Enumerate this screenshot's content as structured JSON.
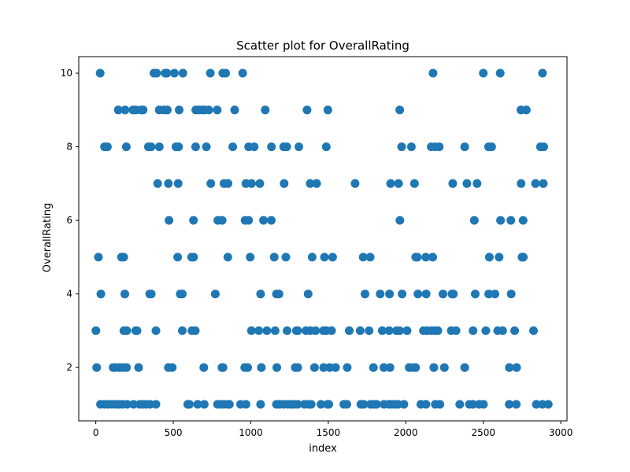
{
  "chart_data": {
    "type": "scatter",
    "title": "Scatter plot for OverallRating",
    "xlabel": "index",
    "ylabel": "OverallRating",
    "xlim": [
      -110,
      3040
    ],
    "ylim": [
      0.55,
      10.45
    ],
    "xticks": [
      0,
      500,
      1000,
      1500,
      2000,
      2500,
      3000
    ],
    "yticks": [
      2,
      4,
      6,
      8,
      10
    ],
    "grid": false,
    "legend": "none",
    "marker_color": "#1f77b4",
    "series": [
      {
        "points": [
          [
            28,
            10
          ],
          [
            375,
            10
          ],
          [
            393,
            10
          ],
          [
            448,
            10
          ],
          [
            459,
            10
          ],
          [
            507,
            10
          ],
          [
            562,
            10
          ],
          [
            739,
            10
          ],
          [
            819,
            10
          ],
          [
            838,
            10
          ],
          [
            948,
            10
          ],
          [
            2176,
            10
          ],
          [
            2500,
            10
          ],
          [
            2609,
            10
          ],
          [
            2882,
            10
          ],
          [
            145,
            9
          ],
          [
            189,
            9
          ],
          [
            240,
            9
          ],
          [
            258,
            9
          ],
          [
            292,
            9
          ],
          [
            305,
            9
          ],
          [
            409,
            9
          ],
          [
            439,
            9
          ],
          [
            461,
            9
          ],
          [
            538,
            9
          ],
          [
            645,
            9
          ],
          [
            667,
            9
          ],
          [
            685,
            9
          ],
          [
            701,
            9
          ],
          [
            729,
            9
          ],
          [
            783,
            9
          ],
          [
            896,
            9
          ],
          [
            1093,
            9
          ],
          [
            1363,
            9
          ],
          [
            1497,
            9
          ],
          [
            1961,
            9
          ],
          [
            2743,
            9
          ],
          [
            2778,
            9
          ],
          [
            56,
            8
          ],
          [
            75,
            8
          ],
          [
            197,
            8
          ],
          [
            339,
            8
          ],
          [
            357,
            8
          ],
          [
            410,
            8
          ],
          [
            517,
            8
          ],
          [
            534,
            8
          ],
          [
            644,
            8
          ],
          [
            713,
            8
          ],
          [
            884,
            8
          ],
          [
            986,
            8
          ],
          [
            1022,
            8
          ],
          [
            1133,
            8
          ],
          [
            1212,
            8
          ],
          [
            1232,
            8
          ],
          [
            1310,
            8
          ],
          [
            1487,
            8
          ],
          [
            1973,
            8
          ],
          [
            2036,
            8
          ],
          [
            2164,
            8
          ],
          [
            2191,
            8
          ],
          [
            2216,
            8
          ],
          [
            2380,
            8
          ],
          [
            2534,
            8
          ],
          [
            2554,
            8
          ],
          [
            2869,
            8
          ],
          [
            2890,
            8
          ],
          [
            399,
            7
          ],
          [
            468,
            7
          ],
          [
            531,
            7
          ],
          [
            742,
            7
          ],
          [
            827,
            7
          ],
          [
            853,
            7
          ],
          [
            968,
            7
          ],
          [
            1004,
            7
          ],
          [
            1058,
            7
          ],
          [
            1215,
            7
          ],
          [
            1383,
            7
          ],
          [
            1425,
            7
          ],
          [
            1673,
            7
          ],
          [
            1902,
            7
          ],
          [
            1953,
            7
          ],
          [
            2056,
            7
          ],
          [
            2303,
            7
          ],
          [
            2394,
            7
          ],
          [
            2460,
            7
          ],
          [
            2744,
            7
          ],
          [
            2837,
            7
          ],
          [
            2887,
            7
          ],
          [
            472,
            6
          ],
          [
            630,
            6
          ],
          [
            787,
            6
          ],
          [
            815,
            6
          ],
          [
            963,
            6
          ],
          [
            986,
            6
          ],
          [
            1082,
            6
          ],
          [
            1132,
            6
          ],
          [
            1962,
            6
          ],
          [
            2442,
            6
          ],
          [
            2611,
            6
          ],
          [
            2678,
            6
          ],
          [
            2757,
            6
          ],
          [
            17,
            5
          ],
          [
            166,
            5
          ],
          [
            180,
            5
          ],
          [
            528,
            5
          ],
          [
            618,
            5
          ],
          [
            631,
            5
          ],
          [
            852,
            5
          ],
          [
            996,
            5
          ],
          [
            1151,
            5
          ],
          [
            1226,
            5
          ],
          [
            1396,
            5
          ],
          [
            1475,
            5
          ],
          [
            1528,
            5
          ],
          [
            1725,
            5
          ],
          [
            1770,
            5
          ],
          [
            2064,
            5
          ],
          [
            2074,
            5
          ],
          [
            2129,
            5
          ],
          [
            2174,
            5
          ],
          [
            2539,
            5
          ],
          [
            2602,
            5
          ],
          [
            2750,
            5
          ],
          [
            2758,
            5
          ],
          [
            33,
            4
          ],
          [
            187,
            4
          ],
          [
            348,
            4
          ],
          [
            358,
            4
          ],
          [
            545,
            4
          ],
          [
            558,
            4
          ],
          [
            771,
            4
          ],
          [
            1063,
            4
          ],
          [
            1166,
            4
          ],
          [
            1182,
            4
          ],
          [
            1370,
            4
          ],
          [
            1737,
            4
          ],
          [
            1835,
            4
          ],
          [
            1895,
            4
          ],
          [
            1976,
            4
          ],
          [
            2078,
            4
          ],
          [
            2131,
            4
          ],
          [
            2240,
            4
          ],
          [
            2298,
            4
          ],
          [
            2307,
            4
          ],
          [
            2448,
            4
          ],
          [
            2535,
            4
          ],
          [
            2575,
            4
          ],
          [
            2680,
            4
          ],
          [
            1,
            3
          ],
          [
            181,
            3
          ],
          [
            200,
            3
          ],
          [
            258,
            3
          ],
          [
            266,
            3
          ],
          [
            388,
            3
          ],
          [
            558,
            3
          ],
          [
            620,
            3
          ],
          [
            642,
            3
          ],
          [
            1004,
            3
          ],
          [
            1052,
            3
          ],
          [
            1104,
            3
          ],
          [
            1157,
            3
          ],
          [
            1234,
            3
          ],
          [
            1294,
            3
          ],
          [
            1303,
            3
          ],
          [
            1356,
            3
          ],
          [
            1384,
            3
          ],
          [
            1418,
            3
          ],
          [
            1468,
            3
          ],
          [
            1488,
            3
          ],
          [
            1521,
            3
          ],
          [
            1635,
            3
          ],
          [
            1706,
            3
          ],
          [
            1763,
            3
          ],
          [
            1848,
            3
          ],
          [
            1893,
            3
          ],
          [
            1940,
            3
          ],
          [
            1961,
            3
          ],
          [
            2008,
            3
          ],
          [
            2114,
            3
          ],
          [
            2139,
            3
          ],
          [
            2165,
            3
          ],
          [
            2186,
            3
          ],
          [
            2207,
            3
          ],
          [
            2293,
            3
          ],
          [
            2324,
            3
          ],
          [
            2434,
            3
          ],
          [
            2516,
            3
          ],
          [
            2593,
            3
          ],
          [
            2625,
            3
          ],
          [
            2702,
            3
          ],
          [
            2824,
            3
          ],
          [
            6,
            2
          ],
          [
            112,
            2
          ],
          [
            125,
            2
          ],
          [
            152,
            2
          ],
          [
            172,
            2
          ],
          [
            198,
            2
          ],
          [
            276,
            2
          ],
          [
            468,
            2
          ],
          [
            493,
            2
          ],
          [
            697,
            2
          ],
          [
            814,
            2
          ],
          [
            821,
            2
          ],
          [
            961,
            2
          ],
          [
            980,
            2
          ],
          [
            1068,
            2
          ],
          [
            1168,
            2
          ],
          [
            1287,
            2
          ],
          [
            1303,
            2
          ],
          [
            1411,
            2
          ],
          [
            1470,
            2
          ],
          [
            1509,
            2
          ],
          [
            1547,
            2
          ],
          [
            1622,
            2
          ],
          [
            1791,
            2
          ],
          [
            1858,
            2
          ],
          [
            1898,
            2
          ],
          [
            2022,
            2
          ],
          [
            2048,
            2
          ],
          [
            2063,
            2
          ],
          [
            2181,
            2
          ],
          [
            2249,
            2
          ],
          [
            2380,
            2
          ],
          [
            2668,
            2
          ],
          [
            2715,
            2
          ]
        ]
      },
      {
        "points": [
          [
            30,
            1
          ],
          [
            56,
            1
          ],
          [
            78,
            1
          ],
          [
            104,
            1
          ],
          [
            130,
            1
          ],
          [
            148,
            1
          ],
          [
            172,
            1
          ],
          [
            202,
            1
          ],
          [
            243,
            1
          ],
          [
            283,
            1
          ],
          [
            303,
            1
          ],
          [
            324,
            1
          ],
          [
            351,
            1
          ],
          [
            388,
            1
          ],
          [
            593,
            1
          ],
          [
            604,
            1
          ],
          [
            657,
            1
          ],
          [
            700,
            1
          ],
          [
            785,
            1
          ],
          [
            808,
            1
          ],
          [
            826,
            1
          ],
          [
            850,
            1
          ],
          [
            862,
            1
          ],
          [
            934,
            1
          ],
          [
            969,
            1
          ],
          [
            1063,
            1
          ],
          [
            1165,
            1
          ],
          [
            1185,
            1
          ],
          [
            1212,
            1
          ],
          [
            1239,
            1
          ],
          [
            1259,
            1
          ],
          [
            1277,
            1
          ],
          [
            1303,
            1
          ],
          [
            1346,
            1
          ],
          [
            1373,
            1
          ],
          [
            1390,
            1
          ],
          [
            1453,
            1
          ],
          [
            1495,
            1
          ],
          [
            1503,
            1
          ],
          [
            1600,
            1
          ],
          [
            1620,
            1
          ],
          [
            1710,
            1
          ],
          [
            1729,
            1
          ],
          [
            1773,
            1
          ],
          [
            1794,
            1
          ],
          [
            1812,
            1
          ],
          [
            1860,
            1
          ],
          [
            1891,
            1
          ],
          [
            1910,
            1
          ],
          [
            1934,
            1
          ],
          [
            1951,
            1
          ],
          [
            1988,
            1
          ],
          [
            2097,
            1
          ],
          [
            2130,
            1
          ],
          [
            2190,
            1
          ],
          [
            2220,
            1
          ],
          [
            2348,
            1
          ],
          [
            2410,
            1
          ],
          [
            2434,
            1
          ],
          [
            2474,
            1
          ],
          [
            2501,
            1
          ],
          [
            2667,
            1
          ],
          [
            2713,
            1
          ],
          [
            2842,
            1
          ],
          [
            2882,
            1
          ],
          [
            2919,
            1
          ]
        ]
      }
    ]
  }
}
